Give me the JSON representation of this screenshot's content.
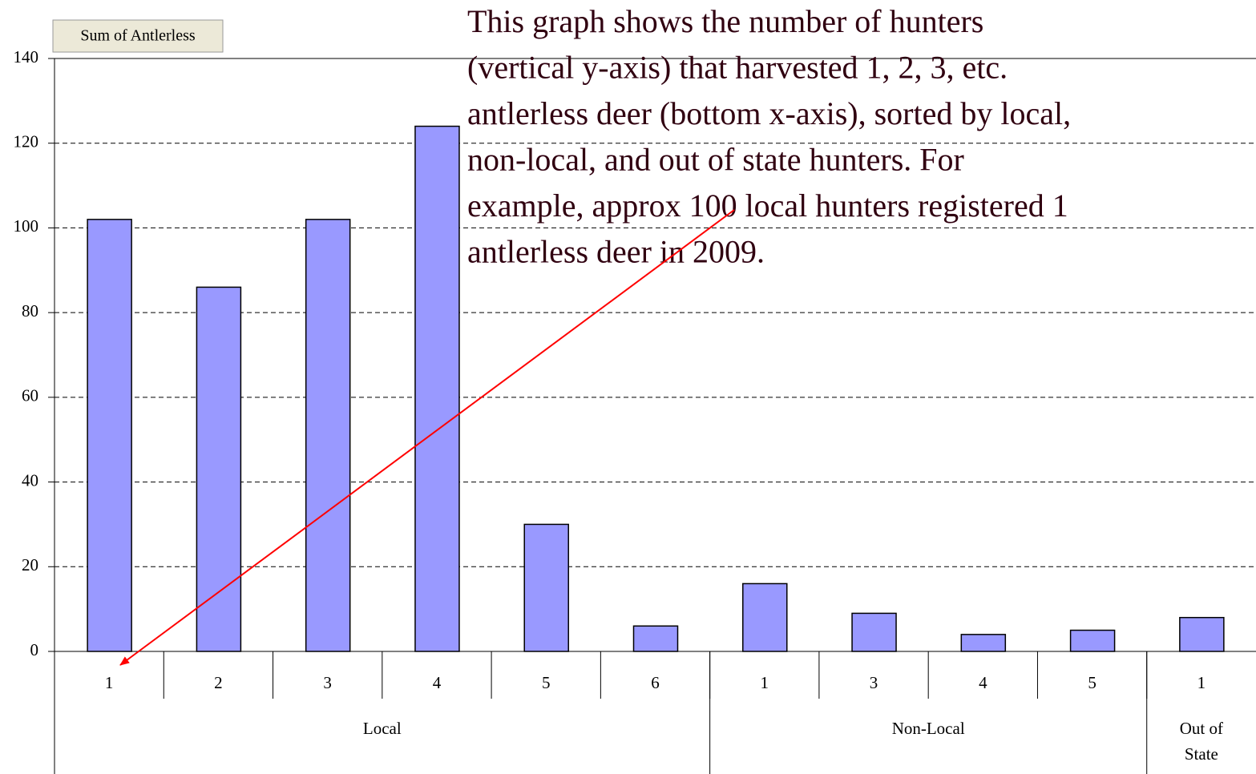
{
  "chart_data": {
    "type": "bar",
    "field_button": "Sum of Antlerless",
    "annotation": [
      "This graph shows the number of hunters",
      "(vertical y-axis) that harvested 1, 2, 3, etc.",
      "antlerless deer (bottom x-axis), sorted by local,",
      "non-local, and out of state hunters.  For",
      "example, approx 100 local hunters registered 1",
      "antlerless deer in 2009."
    ],
    "categories": [
      "1",
      "2",
      "3",
      "4",
      "5",
      "6",
      "1",
      "3",
      "4",
      "5",
      "1"
    ],
    "groups": [
      {
        "name": "Local",
        "span": 6
      },
      {
        "name": "Non-Local",
        "span": 4
      },
      {
        "name": "Out of State",
        "span": 1
      }
    ],
    "values": [
      102,
      86,
      102,
      124,
      30,
      6,
      16,
      9,
      4,
      5,
      8
    ],
    "color": "#9999ff",
    "ylim": [
      0,
      140
    ],
    "yticks": [
      0,
      20,
      40,
      60,
      80,
      100,
      120,
      140
    ],
    "grid": true
  }
}
